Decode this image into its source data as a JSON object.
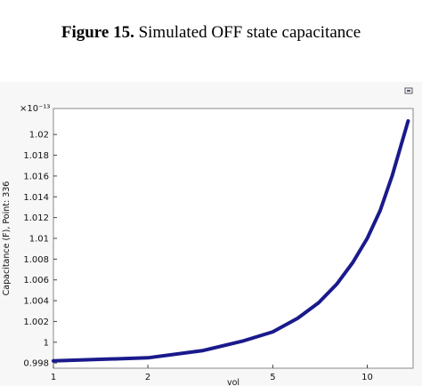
{
  "caption": {
    "label": "Figure 15.",
    "text": "Simulated OFF state capacitance"
  },
  "toolbar": {
    "icon": "export-plot-icon"
  },
  "chart_data": {
    "type": "line",
    "xlabel": "vol",
    "ylabel": "Capacitance (F), Point: 336",
    "y_multiplier": "×10⁻¹³",
    "x_scale": "log",
    "xlim": [
      1,
      14
    ],
    "ylim": [
      0.9975,
      1.0225
    ],
    "x_ticks": [
      1,
      2,
      5,
      10
    ],
    "y_ticks": [
      0.998,
      1,
      1.002,
      1.004,
      1.006,
      1.008,
      1.01,
      1.012,
      1.014,
      1.016,
      1.018,
      1.02
    ],
    "grid": false,
    "series": [
      {
        "color": "#1a1a8c",
        "x": [
          1,
          2,
          3,
          4,
          5,
          6,
          7,
          8,
          9,
          10,
          11,
          12,
          13.5
        ],
        "y": [
          0.9982,
          0.9985,
          0.9992,
          1.0001,
          1.001,
          1.0023,
          1.0038,
          1.0056,
          1.0077,
          1.01,
          1.0127,
          1.016,
          1.0213
        ]
      }
    ]
  }
}
